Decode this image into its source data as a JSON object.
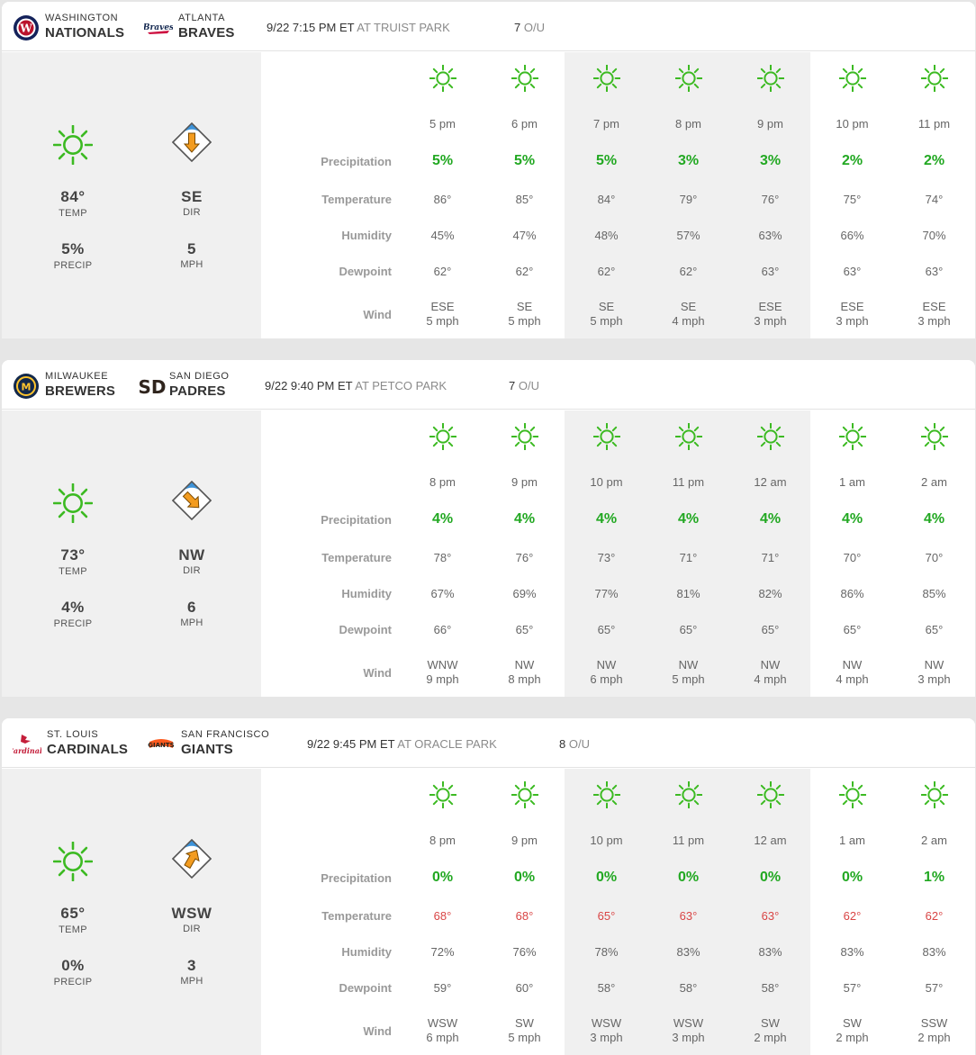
{
  "colors": {
    "sun": "#3cba22",
    "precip": "#22a822",
    "hot": "#d94545",
    "arrow": "#f39c20",
    "field": "#3d93d9"
  },
  "row_labels": {
    "precipitation": "Precipitation",
    "temperature": "Temperature",
    "humidity": "Humidity",
    "dewpoint": "Dewpoint",
    "wind": "Wind"
  },
  "games": [
    {
      "away": {
        "city": "WASHINGTON",
        "name": "NATIONALS",
        "logo": "nationals-logo"
      },
      "home": {
        "city": "ATLANTA",
        "name": "BRAVES",
        "logo": "braves-logo"
      },
      "time": "9/22 7:15 PM ET",
      "venue": "AT TRUIST PARK",
      "ou_value": "7",
      "ou_label": "O/U",
      "summary": {
        "temp": "84°",
        "temp_label": "TEMP",
        "precip": "5%",
        "precip_label": "PRECIP",
        "dir": "SE",
        "dir_label": "DIR",
        "speed": "5",
        "speed_label": "MPH",
        "wind_degrees": 180
      },
      "hours": [
        {
          "time": "5 pm",
          "precip": "5%",
          "temp": "86°",
          "humidity": "45%",
          "dewpoint": "62°",
          "wind_dir": "ESE",
          "wind_speed": "5 mph"
        },
        {
          "time": "6 pm",
          "precip": "5%",
          "temp": "85°",
          "humidity": "47%",
          "dewpoint": "62°",
          "wind_dir": "SE",
          "wind_speed": "5 mph"
        },
        {
          "time": "7 pm",
          "precip": "5%",
          "temp": "84°",
          "humidity": "48%",
          "dewpoint": "62°",
          "wind_dir": "SE",
          "wind_speed": "5 mph"
        },
        {
          "time": "8 pm",
          "precip": "3%",
          "temp": "79°",
          "humidity": "57%",
          "dewpoint": "62°",
          "wind_dir": "SE",
          "wind_speed": "4 mph"
        },
        {
          "time": "9 pm",
          "precip": "3%",
          "temp": "76°",
          "humidity": "63%",
          "dewpoint": "63°",
          "wind_dir": "ESE",
          "wind_speed": "3 mph"
        },
        {
          "time": "10 pm",
          "precip": "2%",
          "temp": "75°",
          "humidity": "66%",
          "dewpoint": "63°",
          "wind_dir": "ESE",
          "wind_speed": "3 mph"
        },
        {
          "time": "11 pm",
          "precip": "2%",
          "temp": "74°",
          "humidity": "70%",
          "dewpoint": "63°",
          "wind_dir": "ESE",
          "wind_speed": "3 mph"
        }
      ]
    },
    {
      "away": {
        "city": "MILWAUKEE",
        "name": "BREWERS",
        "logo": "brewers-logo"
      },
      "home": {
        "city": "SAN DIEGO",
        "name": "PADRES",
        "logo": "padres-logo"
      },
      "time": "9/22 9:40 PM ET",
      "venue": "AT PETCO PARK",
      "ou_value": "7",
      "ou_label": "O/U",
      "summary": {
        "temp": "73°",
        "temp_label": "TEMP",
        "precip": "4%",
        "precip_label": "PRECIP",
        "dir": "NW",
        "dir_label": "DIR",
        "speed": "6",
        "speed_label": "MPH",
        "wind_degrees": 135
      },
      "hours": [
        {
          "time": "8 pm",
          "precip": "4%",
          "temp": "78°",
          "humidity": "67%",
          "dewpoint": "66°",
          "wind_dir": "WNW",
          "wind_speed": "9 mph"
        },
        {
          "time": "9 pm",
          "precip": "4%",
          "temp": "76°",
          "humidity": "69%",
          "dewpoint": "65°",
          "wind_dir": "NW",
          "wind_speed": "8 mph"
        },
        {
          "time": "10 pm",
          "precip": "4%",
          "temp": "73°",
          "humidity": "77%",
          "dewpoint": "65°",
          "wind_dir": "NW",
          "wind_speed": "6 mph"
        },
        {
          "time": "11 pm",
          "precip": "4%",
          "temp": "71°",
          "humidity": "81%",
          "dewpoint": "65°",
          "wind_dir": "NW",
          "wind_speed": "5 mph"
        },
        {
          "time": "12 am",
          "precip": "4%",
          "temp": "71°",
          "humidity": "82%",
          "dewpoint": "65°",
          "wind_dir": "NW",
          "wind_speed": "4 mph"
        },
        {
          "time": "1 am",
          "precip": "4%",
          "temp": "70°",
          "humidity": "86%",
          "dewpoint": "65°",
          "wind_dir": "NW",
          "wind_speed": "4 mph"
        },
        {
          "time": "2 am",
          "precip": "4%",
          "temp": "70°",
          "humidity": "85%",
          "dewpoint": "65°",
          "wind_dir": "NW",
          "wind_speed": "3 mph"
        }
      ]
    },
    {
      "away": {
        "city": "ST. LOUIS",
        "name": "CARDINALS",
        "logo": "cardinals-logo"
      },
      "home": {
        "city": "SAN FRANCISCO",
        "name": "GIANTS",
        "logo": "giants-logo"
      },
      "time": "9/22 9:45 PM ET",
      "venue": "AT ORACLE PARK",
      "ou_value": "8",
      "ou_label": "O/U",
      "summary": {
        "temp": "65°",
        "temp_label": "TEMP",
        "precip": "0%",
        "precip_label": "PRECIP",
        "dir": "WSW",
        "dir_label": "DIR",
        "speed": "3",
        "speed_label": "MPH",
        "wind_degrees": 30
      },
      "hours": [
        {
          "time": "8 pm",
          "precip": "0%",
          "temp": "68°",
          "temp_hot": true,
          "humidity": "72%",
          "dewpoint": "59°",
          "wind_dir": "WSW",
          "wind_speed": "6 mph"
        },
        {
          "time": "9 pm",
          "precip": "0%",
          "temp": "68°",
          "temp_hot": true,
          "humidity": "76%",
          "dewpoint": "60°",
          "wind_dir": "SW",
          "wind_speed": "5 mph"
        },
        {
          "time": "10 pm",
          "precip": "0%",
          "temp": "65°",
          "temp_hot": true,
          "humidity": "78%",
          "dewpoint": "58°",
          "wind_dir": "WSW",
          "wind_speed": "3 mph"
        },
        {
          "time": "11 pm",
          "precip": "0%",
          "temp": "63°",
          "temp_hot": true,
          "humidity": "83%",
          "dewpoint": "58°",
          "wind_dir": "WSW",
          "wind_speed": "3 mph"
        },
        {
          "time": "12 am",
          "precip": "0%",
          "temp": "63°",
          "temp_hot": true,
          "humidity": "83%",
          "dewpoint": "58°",
          "wind_dir": "SW",
          "wind_speed": "2 mph"
        },
        {
          "time": "1 am",
          "precip": "0%",
          "temp": "62°",
          "temp_hot": true,
          "humidity": "83%",
          "dewpoint": "57°",
          "wind_dir": "SW",
          "wind_speed": "2 mph"
        },
        {
          "time": "2 am",
          "precip": "1%",
          "temp": "62°",
          "temp_hot": true,
          "humidity": "83%",
          "dewpoint": "57°",
          "wind_dir": "SSW",
          "wind_speed": "2 mph"
        }
      ]
    }
  ]
}
